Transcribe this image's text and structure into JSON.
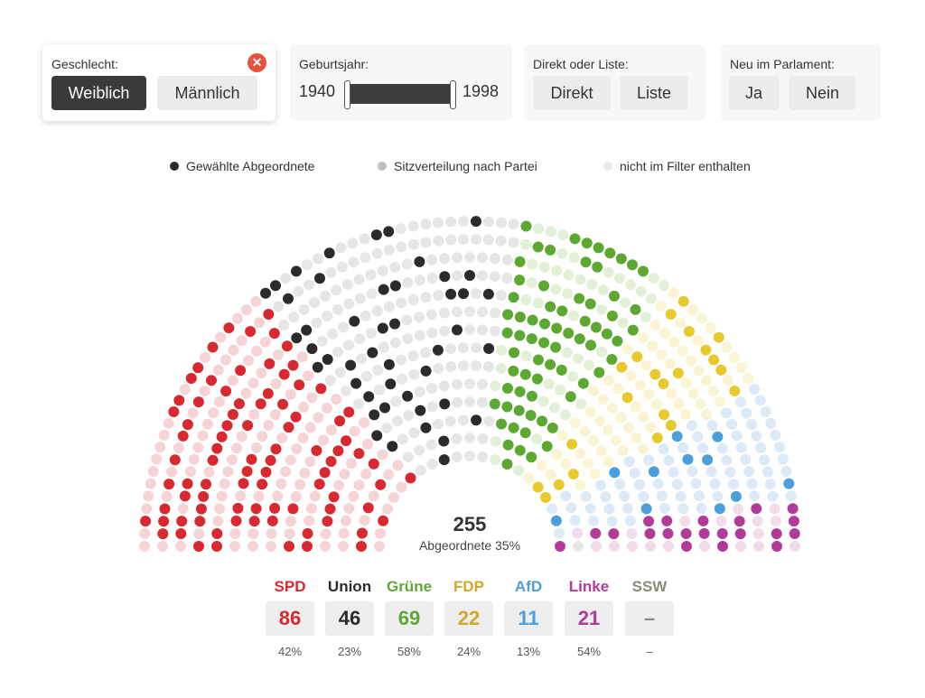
{
  "filters": {
    "gender": {
      "label": "Geschlecht:",
      "options": [
        "Weiblich",
        "Männlich"
      ],
      "selected": "Weiblich",
      "clear_icon": "close-circle-icon"
    },
    "birth_year": {
      "label": "Geburtsjahr:",
      "min": "1940",
      "max": "1998"
    },
    "mandate": {
      "label": "Direkt oder Liste:",
      "options": [
        "Direkt",
        "Liste"
      ]
    },
    "new_member": {
      "label": "Neu im Parlament:",
      "options": [
        "Ja",
        "Nein"
      ]
    }
  },
  "legend": [
    {
      "label": "Gewählte Abgeordnete",
      "color": "#2b2b2b"
    },
    {
      "label": "Sitzverteilung nach Partei",
      "color": "#bdbdbd"
    },
    {
      "label": "nicht im Filter enthalten",
      "color": "#e9e9e9"
    }
  ],
  "summary": {
    "count": "255",
    "label": "Abgeordnete 35%"
  },
  "chart_data": {
    "type": "hemicycle",
    "total_seats": 736,
    "selected_total": 255,
    "parties": [
      {
        "name": "SPD",
        "seats": 206,
        "selected": 86,
        "percent": "42%",
        "color": "#d7292f",
        "light": "#f6d4d5"
      },
      {
        "name": "Union",
        "seats": 197,
        "selected": 46,
        "percent": "23%",
        "color": "#2b2b2b",
        "light": "#e6e6e6"
      },
      {
        "name": "Grüne",
        "seats": 118,
        "selected": 69,
        "percent": "58%",
        "color": "#5ca831",
        "light": "#e2f0d8"
      },
      {
        "name": "FDP",
        "seats": 92,
        "selected": 22,
        "percent": "24%",
        "color": "#e8c92e",
        "light": "#fbf4d2"
      },
      {
        "name": "AfD",
        "seats": 83,
        "selected": 11,
        "percent": "13%",
        "color": "#4a9fdc",
        "light": "#dbeaf6"
      },
      {
        "name": "Linke",
        "seats": 39,
        "selected": 21,
        "percent": "54%",
        "color": "#b23b9a",
        "light": "#f1dbec"
      },
      {
        "name": "SSW",
        "seats": 1,
        "selected": 0,
        "percent": "–",
        "color": "#8a8a7a",
        "light": "#e8e8e2"
      }
    ]
  },
  "party_cards": [
    {
      "name": "SPD",
      "value": "86",
      "percent": "42%",
      "color": "#d7292f"
    },
    {
      "name": "Union",
      "value": "46",
      "percent": "23%",
      "color": "#2b2b2b"
    },
    {
      "name": "Grüne",
      "value": "69",
      "percent": "58%",
      "color": "#5ca831"
    },
    {
      "name": "FDP",
      "value": "22",
      "percent": "24%",
      "color": "#d4a62a"
    },
    {
      "name": "AfD",
      "value": "11",
      "percent": "13%",
      "color": "#4a9fdc"
    },
    {
      "name": "Linke",
      "value": "21",
      "percent": "54%",
      "color": "#b23b9a"
    },
    {
      "name": "SSW",
      "value": "–",
      "percent": "–",
      "color": "#8a8a7a"
    }
  ]
}
